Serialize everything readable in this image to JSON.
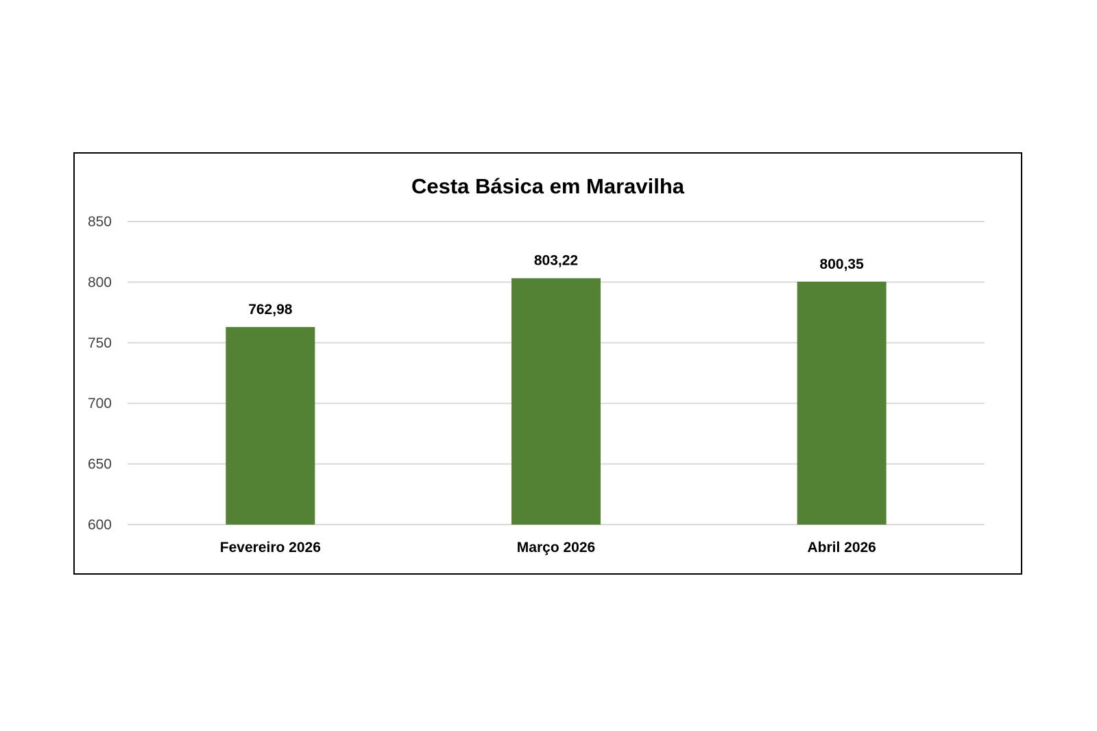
{
  "chart_data": {
    "type": "bar",
    "title": "Cesta Básica em Maravilha",
    "categories": [
      "Fevereiro 2026",
      "Março 2026",
      "Abril 2026"
    ],
    "values": [
      762.98,
      803.22,
      800.35
    ],
    "data_labels": [
      "762,98",
      "803,22",
      "800,35"
    ],
    "ylim": [
      600,
      850
    ],
    "yticks": [
      600,
      650,
      700,
      750,
      800,
      850
    ],
    "ytick_labels": [
      "600",
      "650",
      "700",
      "750",
      "800",
      "850"
    ],
    "xlabel": "",
    "ylabel": "",
    "grid": true,
    "legend": "none",
    "bar_color": "#548235"
  }
}
